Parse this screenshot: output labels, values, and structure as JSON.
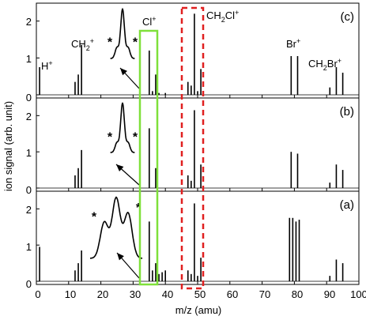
{
  "chart_data": {
    "type": "line",
    "xlabel": "m/z (amu)",
    "ylabel": "ion signal (arb. unit)",
    "xlim": [
      0,
      100
    ],
    "ylim": [
      0,
      2.4
    ],
    "x_ticks": [
      0,
      10,
      20,
      30,
      40,
      50,
      60,
      70,
      80,
      90,
      100
    ],
    "y_ticks": [
      0,
      1,
      2
    ],
    "panels": [
      {
        "label": "(c)",
        "peaks": [
          {
            "x": 1,
            "y": 0.75
          },
          {
            "x": 12,
            "y": 0.35
          },
          {
            "x": 13,
            "y": 0.55
          },
          {
            "x": 14,
            "y": 1.35
          },
          {
            "x": 35,
            "y": 1.2
          },
          {
            "x": 36,
            "y": 0.1
          },
          {
            "x": 37,
            "y": 0.55
          },
          {
            "x": 38,
            "y": 0.05
          },
          {
            "x": 40,
            "y": 0.05
          },
          {
            "x": 47,
            "y": 0.35
          },
          {
            "x": 48,
            "y": 0.25
          },
          {
            "x": 49,
            "y": 2.2
          },
          {
            "x": 50,
            "y": 0.1
          },
          {
            "x": 51,
            "y": 0.7
          },
          {
            "x": 79,
            "y": 1.05
          },
          {
            "x": 81,
            "y": 1.05
          },
          {
            "x": 91,
            "y": 0.2
          },
          {
            "x": 93,
            "y": 0.75
          },
          {
            "x": 95,
            "y": 0.6
          }
        ],
        "inset_peaks": [
          {
            "x": -1.0,
            "y": 0.22
          },
          {
            "x": 0,
            "y": 1
          },
          {
            "x": 1.0,
            "y": 0.22
          }
        ]
      },
      {
        "label": "(b)",
        "peaks": [
          {
            "x": 12,
            "y": 0.35
          },
          {
            "x": 13,
            "y": 0.55
          },
          {
            "x": 14,
            "y": 1.05
          },
          {
            "x": 35,
            "y": 1.65
          },
          {
            "x": 37,
            "y": 0.55
          },
          {
            "x": 47,
            "y": 0.35
          },
          {
            "x": 48,
            "y": 0.2
          },
          {
            "x": 49,
            "y": 2.15
          },
          {
            "x": 51,
            "y": 0.65
          },
          {
            "x": 79,
            "y": 1.0
          },
          {
            "x": 81,
            "y": 0.95
          },
          {
            "x": 91,
            "y": 0.15
          },
          {
            "x": 93,
            "y": 0.65
          },
          {
            "x": 95,
            "y": 0.5
          }
        ],
        "inset_peaks": [
          {
            "x": -1.0,
            "y": 0.2
          },
          {
            "x": 0,
            "y": 1
          },
          {
            "x": 1.0,
            "y": 0.2
          }
        ]
      },
      {
        "label": "(a)",
        "peaks": [
          {
            "x": 1,
            "y": 0.95
          },
          {
            "x": 12,
            "y": 0.3
          },
          {
            "x": 13,
            "y": 0.5
          },
          {
            "x": 14,
            "y": 0.85
          },
          {
            "x": 35,
            "y": 1.65
          },
          {
            "x": 36,
            "y": 0.3
          },
          {
            "x": 37,
            "y": 0.5
          },
          {
            "x": 38,
            "y": 0.2
          },
          {
            "x": 39,
            "y": 0.25
          },
          {
            "x": 40,
            "y": 0.3
          },
          {
            "x": 47,
            "y": 0.3
          },
          {
            "x": 48,
            "y": 0.2
          },
          {
            "x": 49,
            "y": 2.15
          },
          {
            "x": 50,
            "y": 0.15
          },
          {
            "x": 51,
            "y": 0.65
          },
          {
            "x": 78.5,
            "y": 1.75
          },
          {
            "x": 79.5,
            "y": 1.75
          },
          {
            "x": 80.5,
            "y": 1.65
          },
          {
            "x": 81.5,
            "y": 1.7
          },
          {
            "x": 91,
            "y": 0.15
          },
          {
            "x": 93,
            "y": 0.6
          },
          {
            "x": 95,
            "y": 0.5
          }
        ],
        "inset_peaks": [
          {
            "x": -1.0,
            "y": 0.6
          },
          {
            "x": 0,
            "y": 1
          },
          {
            "x": 1.0,
            "y": 0.75
          }
        ]
      }
    ],
    "annotations": {
      "H": "H",
      "CH2": "CH",
      "Cl": "Cl",
      "CH2Cl": "CH",
      "Br": "Br",
      "CH2Br": "CH",
      "star": "*"
    },
    "highlights": [
      {
        "name": "Cl region",
        "style": "solid",
        "color": "#7fe03a",
        "xrange": [
          34,
          38
        ]
      },
      {
        "name": "CH2Cl region",
        "style": "dashed",
        "color": "#e02020",
        "xrange": [
          46.5,
          52.5
        ]
      }
    ]
  }
}
